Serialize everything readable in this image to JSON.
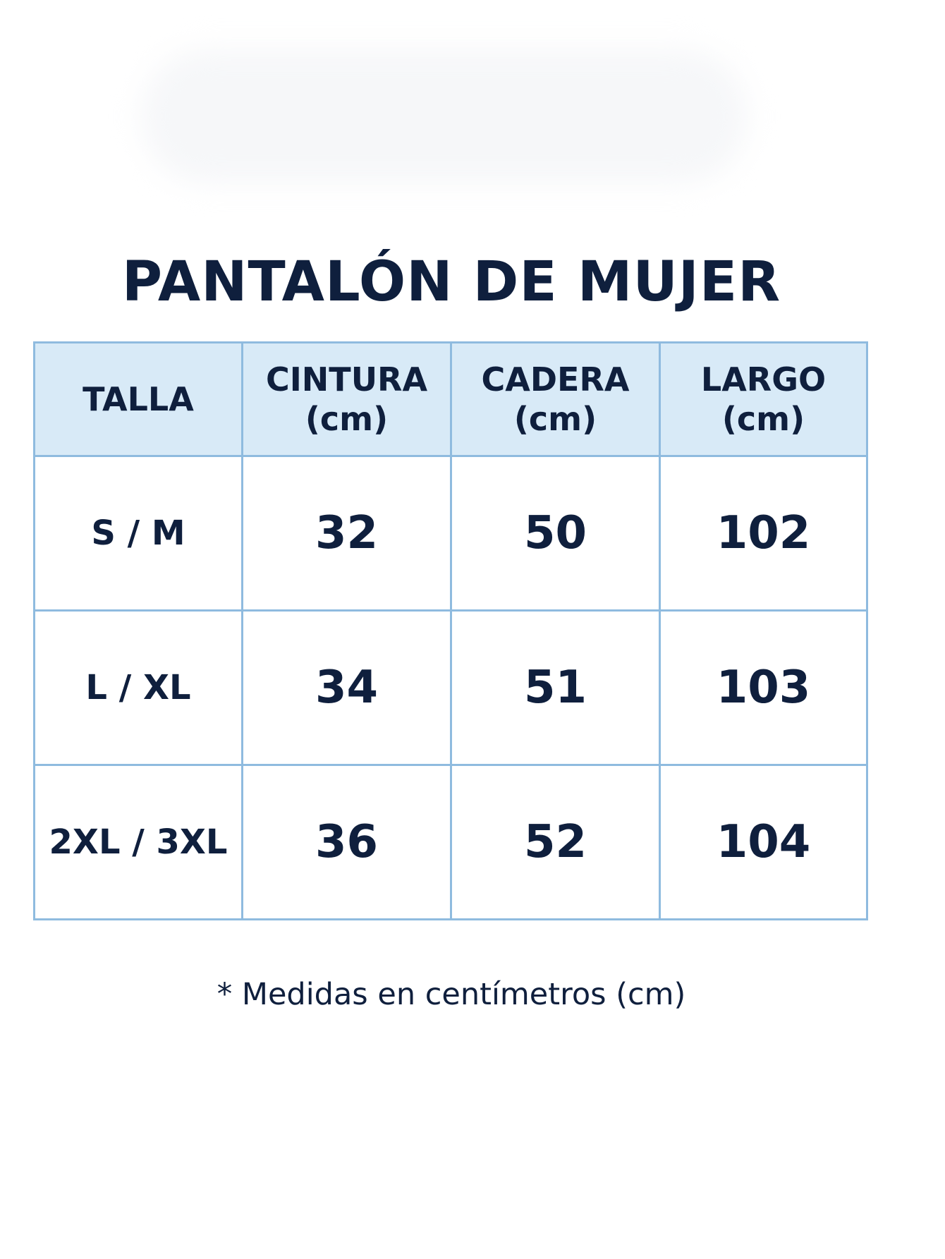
{
  "header": {
    "title": "PANTALÓN DE MUJER"
  },
  "table": {
    "columns": [
      [
        "TALLA"
      ],
      [
        "CINTURA",
        "(cm)"
      ],
      [
        "CADERA",
        "(cm)"
      ],
      [
        "LARGO",
        "(cm)"
      ]
    ],
    "rows": [
      [
        "S / M",
        32,
        50,
        102
      ],
      [
        "L / XL",
        34,
        51,
        103
      ],
      [
        "2XL / 3XL",
        36,
        52,
        104
      ]
    ]
  },
  "footnote": "* Medidas en centímetros (cm)"
}
